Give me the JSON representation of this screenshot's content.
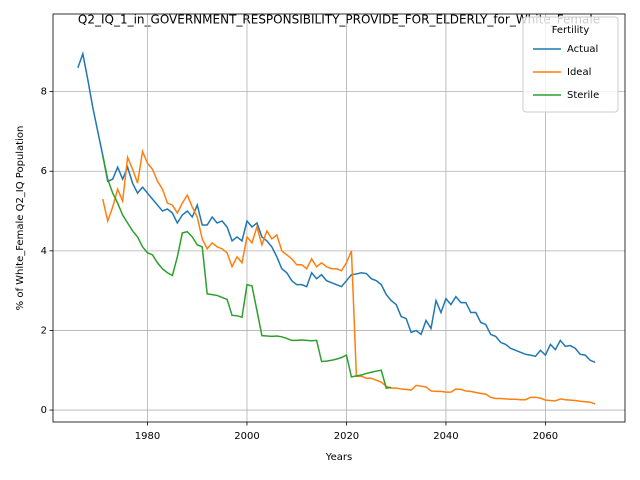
{
  "chart_data": {
    "type": "line",
    "title": "Q2_IQ_1_in_GOVERNMENT_RESPONSIBILITY_PROVIDE_FOR_ELDERLY_for_White_Female",
    "x_label": "Years",
    "y_label": "% of White_Female Q2_IQ Population",
    "x": [
      1966,
      1967,
      1968,
      1969,
      1970,
      1971,
      1972,
      1973,
      1974,
      1975,
      1976,
      1977,
      1978,
      1979,
      1980,
      1981,
      1982,
      1983,
      1984,
      1985,
      1986,
      1987,
      1988,
      1989,
      1990,
      1991,
      1992,
      1993,
      1994,
      1995,
      1996,
      1997,
      1998,
      1999,
      2000,
      2001,
      2002,
      2003,
      2004,
      2005,
      2006,
      2007,
      2008,
      2009,
      2010,
      2011,
      2012,
      2013,
      2014,
      2015,
      2016,
      2017,
      2018,
      2019,
      2020,
      2021,
      2022,
      2023,
      2024,
      2025,
      2026,
      2027,
      2028,
      2029,
      2030,
      2031,
      2032,
      2033,
      2034,
      2035,
      2036,
      2037,
      2038,
      2039,
      2040,
      2041,
      2042,
      2043,
      2044,
      2045,
      2046,
      2047,
      2048,
      2049,
      2050,
      2051,
      2052,
      2053,
      2054,
      2055,
      2056,
      2057,
      2058,
      2059,
      2060,
      2061,
      2062,
      2063,
      2064,
      2065,
      2066,
      2067,
      2068,
      2069,
      2070
    ],
    "series": [
      {
        "name": "Actual",
        "color": "#1f77b4",
        "values": [
          8.6,
          8.95,
          8.3,
          7.6,
          7.0,
          6.4,
          5.75,
          5.8,
          6.1,
          5.8,
          6.1,
          5.7,
          5.45,
          5.6,
          5.45,
          5.3,
          5.15,
          5.0,
          5.05,
          4.95,
          4.7,
          4.9,
          5.0,
          4.85,
          5.15,
          4.65,
          4.65,
          4.85,
          4.7,
          4.75,
          4.6,
          4.25,
          4.35,
          4.25,
          4.75,
          4.6,
          4.7,
          4.35,
          4.25,
          4.1,
          3.85,
          3.55,
          3.45,
          3.25,
          3.15,
          3.15,
          3.1,
          3.45,
          3.3,
          3.4,
          3.25,
          3.2,
          3.15,
          3.1,
          3.25,
          3.4,
          3.42,
          3.45,
          3.43,
          3.3,
          3.25,
          3.15,
          2.9,
          2.75,
          2.65,
          2.35,
          2.3,
          1.95,
          2.0,
          1.9,
          2.25,
          2.05,
          2.75,
          2.45,
          2.8,
          2.65,
          2.85,
          2.7,
          2.7,
          2.45,
          2.45,
          2.2,
          2.15,
          1.9,
          1.85,
          1.7,
          1.65,
          1.55,
          1.5,
          1.45,
          1.4,
          1.38,
          1.35,
          1.5,
          1.38,
          1.65,
          1.52,
          1.75,
          1.6,
          1.62,
          1.55,
          1.4,
          1.38,
          1.25,
          1.2
        ]
      },
      {
        "name": "Ideal",
        "color": "#ff7f0e",
        "values": [
          null,
          null,
          null,
          null,
          null,
          5.3,
          4.75,
          5.1,
          5.55,
          5.25,
          6.35,
          6.05,
          5.7,
          6.5,
          6.2,
          6.05,
          5.75,
          5.55,
          5.2,
          5.15,
          4.95,
          5.2,
          5.4,
          5.1,
          4.85,
          4.3,
          4.05,
          4.2,
          4.1,
          4.05,
          3.95,
          3.6,
          3.85,
          3.7,
          4.35,
          4.2,
          4.6,
          4.15,
          4.5,
          4.3,
          4.4,
          4.0,
          3.9,
          3.8,
          3.65,
          3.65,
          3.55,
          3.8,
          3.6,
          3.7,
          3.6,
          3.55,
          3.55,
          3.5,
          3.7,
          4.0,
          0.85,
          0.85,
          0.8,
          0.8,
          0.75,
          0.7,
          0.6,
          0.55,
          0.55,
          0.53,
          0.52,
          0.5,
          0.62,
          0.6,
          0.58,
          0.48,
          0.47,
          0.47,
          0.45,
          0.45,
          0.53,
          0.52,
          0.48,
          0.47,
          0.44,
          0.42,
          0.4,
          0.32,
          0.29,
          0.29,
          0.28,
          0.27,
          0.27,
          0.26,
          0.26,
          0.32,
          0.32,
          0.3,
          0.25,
          0.24,
          0.23,
          0.28,
          0.26,
          0.25,
          0.24,
          0.22,
          0.21,
          0.2,
          0.15
        ]
      },
      {
        "name": "Sterile",
        "color": "#2ca02c",
        "values": [
          null,
          null,
          null,
          null,
          null,
          6.4,
          5.8,
          5.45,
          5.2,
          4.9,
          4.7,
          4.5,
          4.35,
          4.1,
          3.95,
          3.9,
          3.7,
          3.55,
          3.45,
          3.38,
          3.85,
          4.45,
          4.48,
          4.35,
          4.15,
          4.1,
          2.92,
          2.9,
          2.88,
          2.83,
          2.78,
          2.38,
          2.37,
          2.33,
          3.15,
          3.12,
          2.5,
          1.87,
          1.86,
          1.85,
          1.86,
          1.84,
          1.8,
          1.75,
          1.75,
          1.76,
          1.75,
          1.74,
          1.75,
          1.22,
          1.23,
          1.25,
          1.28,
          1.32,
          1.38,
          0.83,
          0.86,
          0.88,
          0.92,
          0.95,
          0.98,
          1.0,
          0.55,
          0.57,
          null,
          null,
          null,
          null,
          null,
          null,
          null,
          null,
          null,
          null,
          null,
          null,
          null,
          null,
          null,
          null,
          null,
          null,
          null,
          null,
          null,
          null,
          null,
          null,
          null,
          null,
          null,
          null,
          null,
          null,
          null,
          null,
          null,
          null,
          null,
          null,
          null,
          null,
          null,
          null,
          null
        ]
      }
    ],
    "xlim": [
      1961,
      2076
    ],
    "ylim": [
      -0.3,
      9.95
    ],
    "xticks": [
      1980,
      2000,
      2020,
      2040,
      2060
    ],
    "yticks": [
      0,
      2,
      4,
      6,
      8
    ],
    "grid": true,
    "legend": {
      "title": "Fertility",
      "loc": "upper right"
    }
  }
}
